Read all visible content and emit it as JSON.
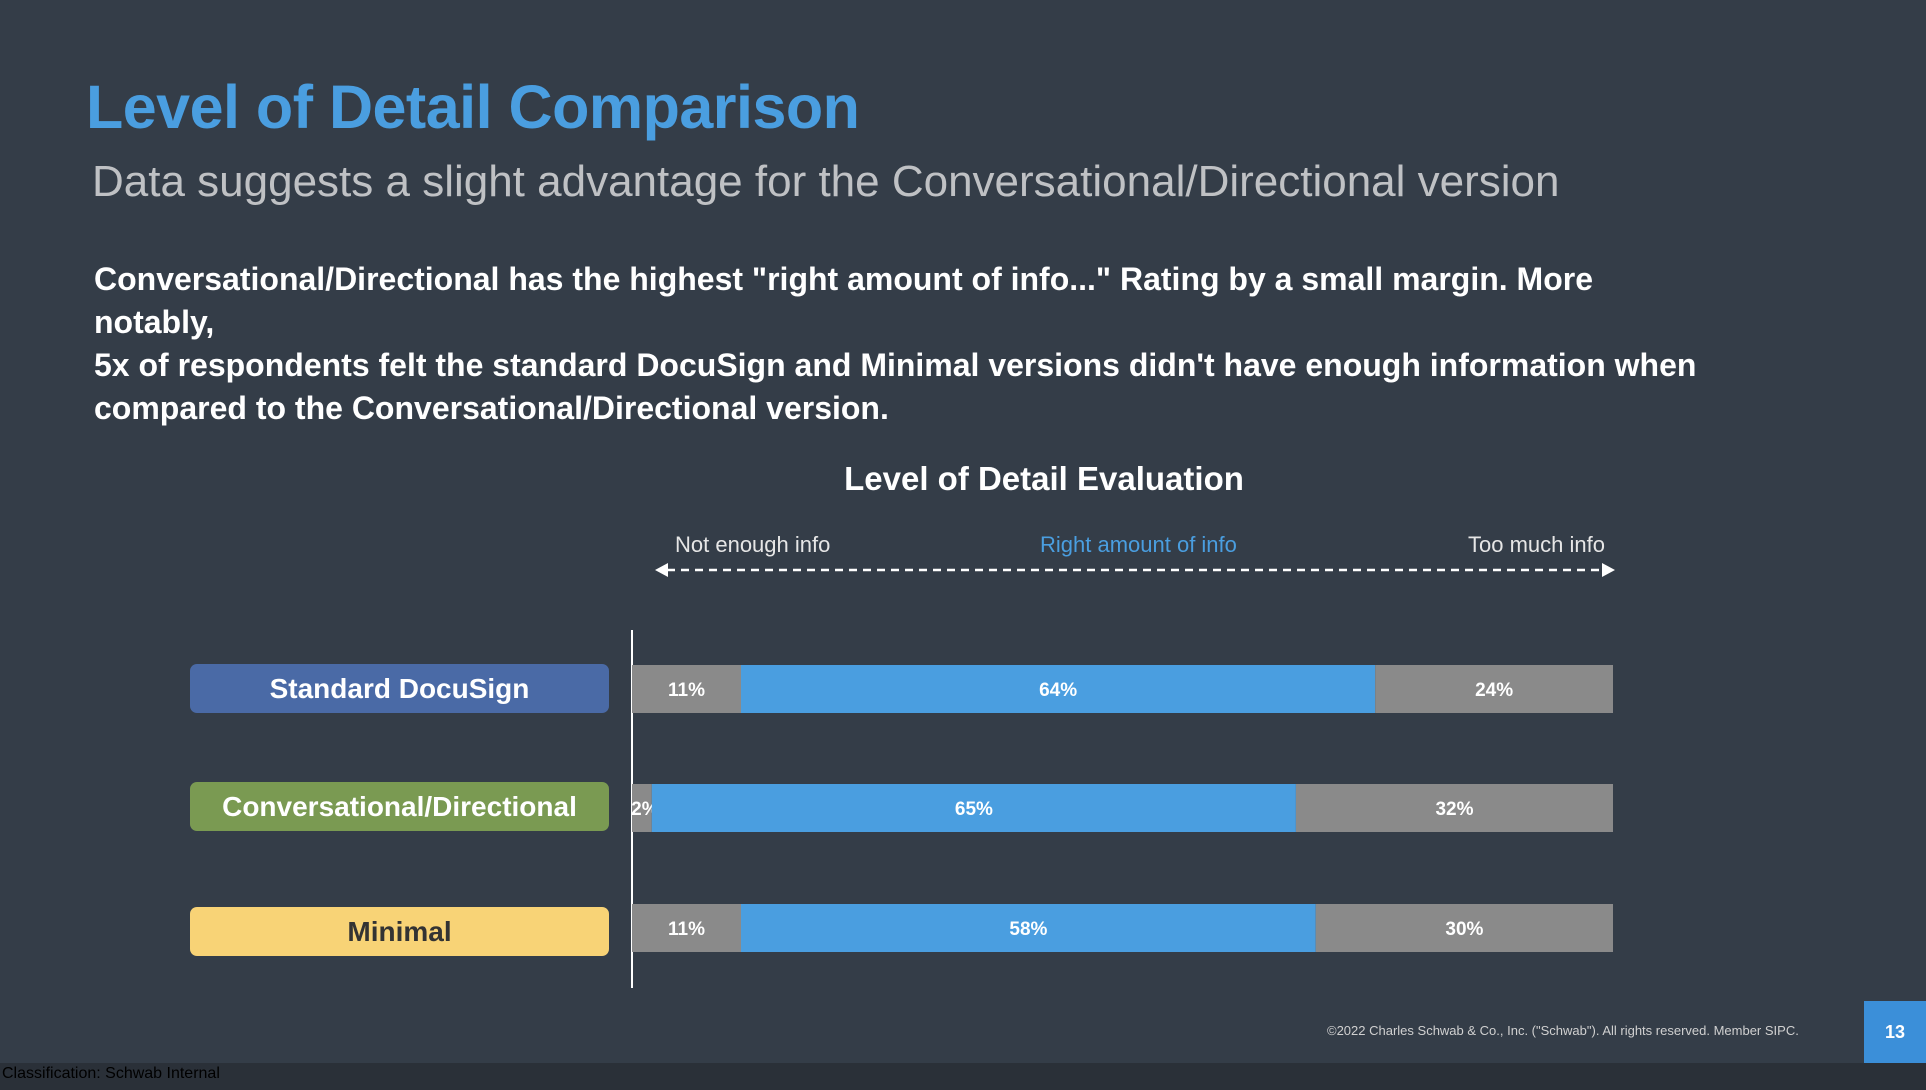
{
  "colors": {
    "title": "#4a9ee0",
    "not_enough": "#8a8a8a",
    "right_amount": "#4a9ee0",
    "too_much": "#8a8a8a",
    "label_standard": "#4a6aa6",
    "label_conversational": "#7a9a52",
    "label_minimal": "#f8d376",
    "page_badge": "#3b8fd9"
  },
  "slide": {
    "title": "Level of Detail Comparison",
    "subtitle": "Data suggests a slight advantage for the Conversational/Directional  version",
    "body_line1": "Conversational/Directional has the highest \"right amount of info...\" Rating by a small margin.  More notably,",
    "body_line2": "5x of respondents felt the standard DocuSign and Minimal versions didn't have enough information when",
    "body_line3": "compared to the Conversational/Directional version.",
    "copyright": "©2022 Charles Schwab & Co., Inc. (\"Schwab\"). All rights reserved. Member SIPC.",
    "page_number": "13",
    "classification": "Classification: Schwab Internal"
  },
  "chart_data": {
    "type": "bar",
    "orientation": "horizontal",
    "stacked": true,
    "title": "Level of Detail Evaluation",
    "scale_labels": {
      "left": "Not enough info",
      "middle": "Right amount  of info",
      "right": "Too much info"
    },
    "categories": [
      "Standard  DocuSign",
      "Conversational/Directional",
      "Minimal"
    ],
    "series": [
      {
        "key": "not_enough",
        "values": [
          11,
          2,
          11
        ],
        "labels": [
          "11%",
          "2%",
          "11%"
        ]
      },
      {
        "key": "right_amount",
        "values": [
          64,
          65,
          58
        ],
        "labels": [
          "64%",
          "65%",
          "58%"
        ]
      },
      {
        "key": "too_much",
        "values": [
          24,
          32,
          30
        ],
        "labels": [
          "24%",
          "32%",
          "30%"
        ]
      }
    ],
    "xlim": [
      0,
      99
    ]
  }
}
